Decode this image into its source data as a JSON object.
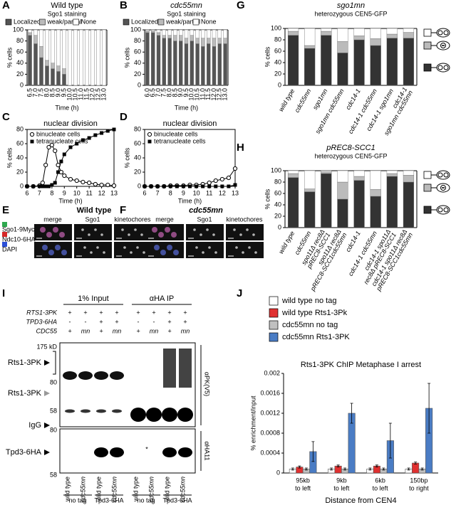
{
  "chart_data": [
    {
      "panel": "A",
      "type": "stacked_bar",
      "title": "Wild type",
      "subtitle": "Sgo1 staining",
      "xlabel": "Time (h)",
      "ylabel": "% cells",
      "legend": "top",
      "categories": [
        "6.5",
        "7.0",
        "7.5",
        "8.0",
        "8.5",
        "9.0",
        "9.5",
        "10.0",
        "10.5",
        "11.0",
        "11.5",
        "12.0",
        "12.5",
        "13.0"
      ],
      "series": [
        {
          "name": "Localized",
          "color": "#555555",
          "values": [
            90,
            75,
            50,
            35,
            30,
            25,
            20,
            0,
            0,
            0,
            0,
            0,
            0,
            0
          ]
        },
        {
          "name": "weak/partial",
          "color": "#bbbbbb",
          "values": [
            5,
            15,
            20,
            10,
            10,
            10,
            10,
            0,
            0,
            0,
            0,
            0,
            0,
            0
          ]
        },
        {
          "name": "None",
          "color": "#ffffff",
          "values": [
            5,
            10,
            30,
            55,
            60,
            65,
            70,
            100,
            100,
            100,
            100,
            100,
            100,
            100
          ]
        }
      ],
      "ylim": [
        0,
        100
      ],
      "yticks": [
        0,
        20,
        40,
        60,
        80,
        100
      ]
    },
    {
      "panel": "B",
      "type": "stacked_bar",
      "title": "cdc55mn",
      "subtitle": "Sgo1 staining",
      "xlabel": "Time (h)",
      "ylabel": "% cells",
      "legend": "top",
      "categories": [
        "6.0",
        "6.5",
        "7.0",
        "7.5",
        "8.0",
        "8.5",
        "9.0",
        "9.5",
        "10.0",
        "10.5",
        "11.0",
        "11.5",
        "12.0",
        "12.5",
        "13.0"
      ],
      "series": [
        {
          "name": "Localized",
          "color": "#555555",
          "values": [
            95,
            95,
            90,
            85,
            85,
            80,
            80,
            75,
            80,
            75,
            70,
            75,
            70,
            75,
            75
          ]
        },
        {
          "name": "weak/partial",
          "color": "#bbbbbb",
          "values": [
            3,
            3,
            5,
            5,
            5,
            10,
            10,
            10,
            10,
            10,
            15,
            10,
            15,
            10,
            10
          ]
        },
        {
          "name": "None",
          "color": "#ffffff",
          "values": [
            2,
            2,
            5,
            10,
            10,
            10,
            10,
            15,
            10,
            15,
            15,
            15,
            15,
            15,
            15
          ]
        }
      ],
      "ylim": [
        0,
        100
      ],
      "yticks": [
        0,
        20,
        40,
        60,
        80,
        100
      ]
    },
    {
      "panel": "C",
      "type": "line",
      "title": "nuclear division",
      "xlabel": "Time (h)",
      "ylabel": "% cells",
      "legend": "upper left",
      "x": [
        6,
        6.5,
        7,
        7.25,
        7.5,
        7.75,
        8,
        8.25,
        8.5,
        8.75,
        9,
        9.5,
        10,
        10.5,
        11,
        11.5,
        12,
        12.5,
        13
      ],
      "series": [
        {
          "name": "binucleate cells",
          "marker": "circle",
          "color": "#000000",
          "values": [
            0,
            0,
            1,
            5,
            30,
            55,
            58,
            50,
            30,
            20,
            15,
            10,
            8,
            6,
            5,
            3,
            2,
            2,
            1
          ]
        },
        {
          "name": "tetranucleate cells",
          "marker": "square",
          "color": "#000000",
          "values": [
            0,
            0,
            0,
            0,
            0,
            0,
            2,
            5,
            20,
            35,
            45,
            55,
            60,
            65,
            68,
            72,
            75,
            78,
            80
          ]
        }
      ],
      "xlim": [
        6,
        13
      ],
      "xticks": [
        6,
        7,
        8,
        9,
        10,
        11,
        12,
        13
      ],
      "ylim": [
        0,
        80
      ],
      "yticks": [
        0,
        20,
        40,
        60,
        80
      ]
    },
    {
      "panel": "D",
      "type": "line",
      "title": "nuclear division",
      "xlabel": "Time (h)",
      "ylabel": "% cells",
      "legend": "upper left",
      "x": [
        6,
        6.5,
        7,
        7.5,
        8,
        8.5,
        9,
        9.5,
        10,
        10.5,
        11,
        11.5,
        12,
        12.5,
        13
      ],
      "series": [
        {
          "name": "binucleate cells",
          "marker": "circle",
          "color": "#000000",
          "values": [
            0,
            0,
            0,
            0,
            1,
            1,
            1,
            2,
            2,
            3,
            5,
            8,
            10,
            12,
            25
          ]
        },
        {
          "name": "tetranucleate cells",
          "marker": "square",
          "color": "#000000",
          "values": [
            0,
            0,
            0,
            0,
            0,
            0,
            0,
            0,
            0,
            0,
            0,
            0,
            0,
            0,
            2
          ]
        }
      ],
      "xlim": [
        6,
        13
      ],
      "xticks": [
        6,
        7,
        8,
        9,
        10,
        11,
        12,
        13
      ],
      "ylim": [
        0,
        80
      ],
      "yticks": [
        0,
        20,
        40,
        60,
        80
      ]
    },
    {
      "panel": "G",
      "type": "stacked_bar",
      "title": "sgo1mn",
      "subtitle": "heterozygous CEN5-GFP",
      "ylabel": "% cells",
      "legend": "right",
      "categories": [
        [
          "wild type"
        ],
        [
          "cdc55mn"
        ],
        [
          "sgo1mn"
        ],
        [
          "sgo1mn cdc55mn"
        ],
        [
          "cdc14-1"
        ],
        [
          "cdc14-1 cdc55mn"
        ],
        [
          "cdc14-1 sgo1mn"
        ],
        [
          "cdc14-1",
          "sgo1mn cdc55mn"
        ]
      ],
      "series": [
        {
          "color": "#333333",
          "values": [
            88,
            65,
            88,
            57,
            80,
            70,
            83,
            83
          ]
        },
        {
          "color": "#bbbbbb",
          "values": [
            7,
            5,
            7,
            20,
            7,
            12,
            7,
            10
          ]
        },
        {
          "color": "#ffffff",
          "values": [
            5,
            30,
            5,
            23,
            13,
            18,
            10,
            7
          ]
        }
      ],
      "ylim": [
        0,
        100
      ],
      "yticks": [
        0,
        20,
        40,
        60,
        80,
        100
      ]
    },
    {
      "panel": "H",
      "type": "stacked_bar",
      "title": "pREC8-SCC1",
      "subtitle": "heterozygous CEN5-GFP",
      "ylabel": "% cells",
      "legend": "right",
      "categories": [
        [
          "wild type"
        ],
        [
          "cdc55mn"
        ],
        [
          "spo11Δ rec8Δ",
          "pREC8-SCC1"
        ],
        [
          "spo11Δ rec8Δ",
          "pREC8-SCC1cdc55mn"
        ],
        [
          "cdc14-1"
        ],
        [
          "cdc14-1 cdc55mn"
        ],
        [
          "cdc14-1 spo11Δ",
          "rec8Δ pREC8-SCC1"
        ],
        [
          "cdc14-1 spo11Δ rec8Δ",
          "pREC8-SCC1cdc55mn"
        ]
      ],
      "series": [
        {
          "color": "#333333",
          "values": [
            88,
            63,
            95,
            50,
            83,
            55,
            90,
            80
          ]
        },
        {
          "color": "#bbbbbb",
          "values": [
            7,
            5,
            3,
            30,
            7,
            12,
            5,
            12
          ]
        },
        {
          "color": "#ffffff",
          "values": [
            5,
            32,
            2,
            20,
            10,
            33,
            5,
            8
          ]
        }
      ],
      "ylim": [
        0,
        100
      ],
      "yticks": [
        0,
        20,
        40,
        60,
        80,
        100
      ]
    },
    {
      "panel": "J",
      "type": "bar",
      "title": "Rts1-3PK ChIP Metaphase I arrest",
      "xlabel": "Distance from CEN4",
      "ylabel": "% enrichment/input",
      "legend": "top",
      "categories": [
        [
          "95kb",
          "to left"
        ],
        [
          "9kb",
          "to left"
        ],
        [
          "6kb",
          "to left"
        ],
        [
          "150bp",
          "to right"
        ]
      ],
      "series": [
        {
          "name": "wild type no tag",
          "color": "#ffffff",
          "values": [
            8e-05,
            8e-05,
            8e-05,
            8e-05
          ],
          "errors": [
            2e-05,
            2e-05,
            2e-05,
            2e-05
          ]
        },
        {
          "name": "wild type Rts1-3Pk",
          "color": "#e03030",
          "values": [
            0.00012,
            0.00014,
            0.00014,
            0.0002
          ],
          "errors": [
            2e-05,
            2e-05,
            2e-05,
            2e-05
          ]
        },
        {
          "name": "cdc55mn no tag",
          "color": "#c0c0c0",
          "values": [
            8e-05,
            8e-05,
            8e-05,
            8e-05
          ],
          "errors": [
            2e-05,
            2e-05,
            2e-05,
            2e-05
          ]
        },
        {
          "name": "cdc55mn Rts1-3PK",
          "color": "#4a7cc4",
          "values": [
            0.00043,
            0.0012,
            0.00065,
            0.0013
          ],
          "errors": [
            0.0002,
            0.0002,
            0.00035,
            0.0005
          ]
        }
      ],
      "ylim": [
        0,
        0.002
      ],
      "yticks": [
        0,
        0.0004,
        0.0008,
        0.0012,
        0.0016,
        0.002
      ]
    }
  ],
  "microscopy": {
    "channels": [
      "Sgo1-9Myc",
      "Ndc10-6HA",
      "DAPI"
    ],
    "panels": [
      {
        "panel": "E",
        "title": "Wild type",
        "columns": [
          "merge",
          "Sgo1",
          "kinetochores"
        ]
      },
      {
        "panel": "F",
        "title": "cdc55mn",
        "columns": [
          "merge",
          "Sgo1",
          "kinetochores"
        ]
      }
    ]
  },
  "blot": {
    "panel": "I",
    "sections": [
      "1% Input",
      "αHA IP"
    ],
    "genotype_rows": [
      {
        "label": "RTS1-3PK",
        "marks": [
          "+",
          "+",
          "+",
          "+",
          "+",
          "+",
          "+",
          "+"
        ]
      },
      {
        "label": "TPD3-6HA",
        "marks": [
          "-",
          "-",
          "+",
          "+",
          "-",
          "-",
          "+",
          "+"
        ]
      },
      {
        "label": "CDC55",
        "marks": [
          "+",
          "mn",
          "+",
          "mn",
          "+",
          "mn",
          "+",
          "mn"
        ]
      }
    ],
    "size_markers_top": [
      "175 kD",
      "80",
      "58"
    ],
    "size_markers_bottom": [
      "80",
      "58"
    ],
    "bands": [
      "Rts1-3PK",
      "Rts1-3PK",
      "IgG",
      "Tpd3-6HA"
    ],
    "antibodies": [
      "αPK(V5)",
      "αHA11"
    ],
    "asterisk": "*",
    "lane_labels": [
      "wild type",
      "cdc55mn",
      "wild type",
      "cdc55mn",
      "wild type",
      "cdc55mn",
      "wild type",
      "cdc55mn"
    ],
    "groups": [
      "no tag",
      "Tpd3-6HA",
      "no tag",
      "Tpd3-6HA"
    ]
  }
}
